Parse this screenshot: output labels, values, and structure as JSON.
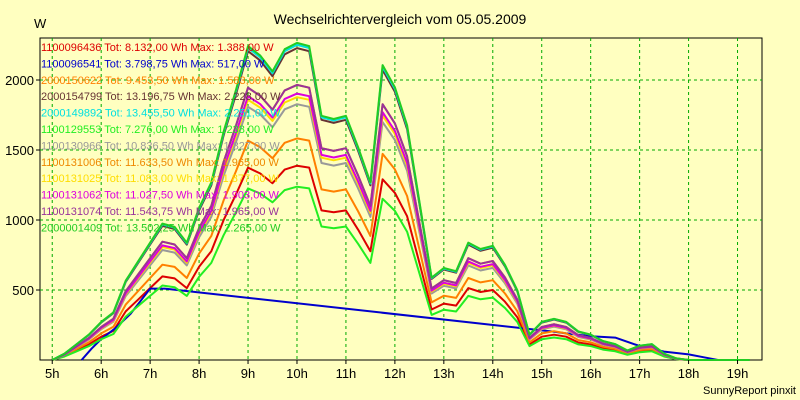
{
  "chart_data": {
    "type": "line",
    "title": "Wechselrichtervergleich vom 05.05.2009",
    "ylabel": "W",
    "xlabel": "",
    "credit": "SunnyReport pinxit",
    "grid": true,
    "legend_position": "top-left",
    "xlim": [
      4.75,
      19.5
    ],
    "ylim": [
      0,
      2300
    ],
    "x_ticks": [
      5,
      6,
      7,
      8,
      9,
      10,
      11,
      12,
      13,
      14,
      15,
      16,
      17,
      18,
      19
    ],
    "x_tick_labels": [
      "5h",
      "6h",
      "7h",
      "8h",
      "9h",
      "10h",
      "11h",
      "12h",
      "13h",
      "14h",
      "15h",
      "16h",
      "17h",
      "18h",
      "19h"
    ],
    "y_ticks": [
      500,
      1000,
      1500,
      2000
    ],
    "y_tick_labels": [
      "500",
      "1000",
      "1500",
      "2000"
    ],
    "x": [
      5.0,
      5.25,
      5.5,
      5.75,
      6.0,
      6.25,
      6.5,
      6.75,
      7.0,
      7.25,
      7.5,
      7.75,
      8.0,
      8.25,
      8.5,
      8.75,
      9.0,
      9.25,
      9.5,
      9.75,
      10.0,
      10.25,
      10.5,
      10.75,
      11.0,
      11.25,
      11.5,
      11.75,
      12.0,
      12.25,
      12.5,
      12.75,
      13.0,
      13.25,
      13.5,
      13.75,
      14.0,
      14.25,
      14.5,
      14.75,
      15.0,
      15.25,
      15.5,
      15.75,
      16.0,
      16.25,
      16.5,
      16.75,
      17.0,
      17.25,
      17.5,
      17.75,
      18.0,
      18.25,
      18.5,
      18.75,
      19.0,
      19.25
    ],
    "profile": [
      0,
      0.02,
      0.05,
      0.08,
      0.12,
      0.15,
      0.25,
      0.31,
      0.37,
      0.43,
      0.42,
      0.37,
      0.48,
      0.56,
      0.72,
      0.85,
      0.99,
      0.96,
      0.91,
      0.98,
      1.0,
      0.99,
      0.77,
      0.76,
      0.77,
      0.67,
      0.56,
      0.93,
      0.86,
      0.74,
      0.5,
      0.26,
      0.29,
      0.28,
      0.37,
      0.35,
      0.36,
      0.3,
      0.22,
      0.08,
      0.12,
      0.13,
      0.12,
      0.09,
      0.08,
      0.06,
      0.05,
      0.03,
      0.045,
      0.05,
      0.02,
      0.005,
      0,
      0,
      0,
      0,
      0,
      0
    ],
    "series": [
      {
        "name": "1100096436 Tot: 8.132,00 Wh Max: 1.388,00 W",
        "color": "#dd0000",
        "scale": 1388
      },
      {
        "name": "1100096541 Tot: 3.798,75 Wh Max: 517,00 W",
        "color": "#0000cc",
        "scale": 517
      },
      {
        "name": "2000150622 Tot: 9.453,50 Wh Max: 1.583,00 W",
        "color": "#ff8000",
        "scale": 1583
      },
      {
        "name": "2000154799 Tot: 13.196,75 Wh Max: 2.228,00 W",
        "color": "#663333",
        "scale": 2228
      },
      {
        "name": "2000149892 Tot: 13.455,50 Wh Max: 2.251,00 W",
        "color": "#00e0e0",
        "scale": 2251
      },
      {
        "name": "1100129553 Tot: 7.276,00 Wh Max: 1.238,00 W",
        "color": "#22ee22",
        "scale": 1238
      },
      {
        "name": "1100130966 Tot: 10.836,50 Wh Max: 1.827,00 W",
        "color": "#999999",
        "scale": 1827
      },
      {
        "name": "1100131006 Tot: 11.633,50 Wh Max: 1.965,00 W",
        "color": "#ee8800",
        "scale": 1965
      },
      {
        "name": "1100131025 Tot: 11.083,00 Wh Max: 1.877,00 W",
        "color": "#ffdd00",
        "scale": 1877
      },
      {
        "name": "1100131062 Tot: 11.027,50 Wh Max: 1.903,00 W",
        "color": "#dd00dd",
        "scale": 1903
      },
      {
        "name": "1100131074 Tot: 11.543,75 Wh Max: 1.965,00 W",
        "color": "#993399",
        "scale": 1965
      },
      {
        "name": "2000001409 Tot: 13.502,25 Wh Max: 2.265,00 W",
        "color": "#22cc22",
        "scale": 2265
      }
    ],
    "blue_series_points": [
      [
        5.6,
        0
      ],
      [
        5.8,
        80
      ],
      [
        6.0,
        150
      ],
      [
        6.3,
        230
      ],
      [
        6.6,
        330
      ],
      [
        7.0,
        510
      ],
      [
        7.3,
        510
      ],
      [
        15.3,
        200
      ],
      [
        15.5,
        190
      ],
      [
        16.0,
        170
      ],
      [
        16.5,
        160
      ],
      [
        17.0,
        100
      ],
      [
        17.5,
        60
      ],
      [
        18.0,
        40
      ],
      [
        18.3,
        20
      ],
      [
        18.6,
        0
      ]
    ]
  }
}
